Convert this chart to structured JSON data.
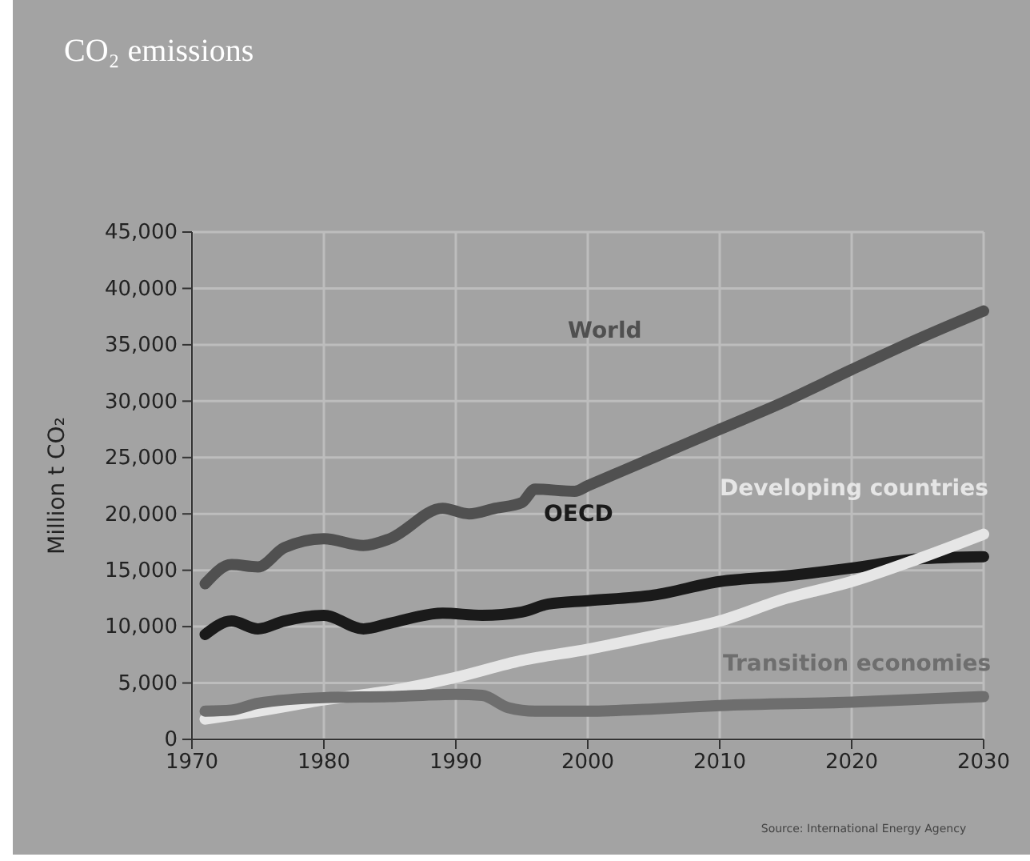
{
  "chart_data": {
    "type": "line",
    "title": "CO₂ emissions",
    "ylabel": "Million t CO₂",
    "xlim": [
      1970,
      2030
    ],
    "xticks": [
      1970,
      1980,
      1990,
      2000,
      2010,
      2020,
      2030
    ],
    "ylim": [
      0,
      45000
    ],
    "yticks": [
      {
        "value": 0,
        "label": "0"
      },
      {
        "value": 5000,
        "label": "5,000"
      },
      {
        "value": 10000,
        "label": "10,000"
      },
      {
        "value": 15000,
        "label": "15,000"
      },
      {
        "value": 20000,
        "label": "20,000"
      },
      {
        "value": 25000,
        "label": "25,000"
      },
      {
        "value": 30000,
        "label": "30,000"
      },
      {
        "value": 35000,
        "label": "35,000"
      },
      {
        "value": 40000,
        "label": "40,000"
      },
      {
        "value": 45000,
        "label": "45,000"
      }
    ],
    "grid": true,
    "line_style": "solid",
    "marker": "none",
    "legend": false,
    "series": [
      {
        "name": "World",
        "color": "#505050",
        "x": [
          1971,
          1973,
          1975,
          1977,
          1980,
          1983,
          1985,
          1989,
          1991,
          1993,
          1995,
          1996,
          1999,
          2000,
          2005,
          2010,
          2015,
          2020,
          2025,
          2030
        ],
        "values": [
          13800,
          15500,
          15300,
          17000,
          17800,
          17200,
          17800,
          20500,
          20000,
          20500,
          21000,
          22200,
          22000,
          22500,
          25000,
          27500,
          30000,
          32800,
          35500,
          38000
        ]
      },
      {
        "name": "OECD",
        "color": "#1a1a1a",
        "x": [
          1971,
          1973,
          1975,
          1977,
          1980,
          1983,
          1985,
          1989,
          1992,
          1995,
          1997,
          2000,
          2005,
          2010,
          2015,
          2020,
          2025,
          2030
        ],
        "values": [
          9300,
          10500,
          9800,
          10500,
          11000,
          9800,
          10300,
          11200,
          11000,
          11300,
          12000,
          12300,
          12800,
          14000,
          14500,
          15200,
          16000,
          16200
        ]
      },
      {
        "name": "Developing countries",
        "color": "#e6e6e6",
        "x": [
          1971,
          1975,
          1980,
          1985,
          1990,
          1995,
          2000,
          2005,
          2010,
          2015,
          2020,
          2025,
          2030
        ],
        "values": [
          1800,
          2500,
          3500,
          4300,
          5500,
          7000,
          8000,
          9200,
          10500,
          12500,
          14000,
          16000,
          18200
        ]
      },
      {
        "name": "Transition economies",
        "color": "#6e6e6e",
        "x": [
          1971,
          1973,
          1975,
          1980,
          1985,
          1990,
          1992,
          1994,
          1996,
          2000,
          2005,
          2010,
          2020,
          2030
        ],
        "values": [
          2500,
          2600,
          3200,
          3700,
          3800,
          4000,
          3900,
          2800,
          2500,
          2500,
          2700,
          3000,
          3300,
          3800
        ]
      }
    ],
    "annotations": [
      "Source: International Energy Agency"
    ]
  }
}
